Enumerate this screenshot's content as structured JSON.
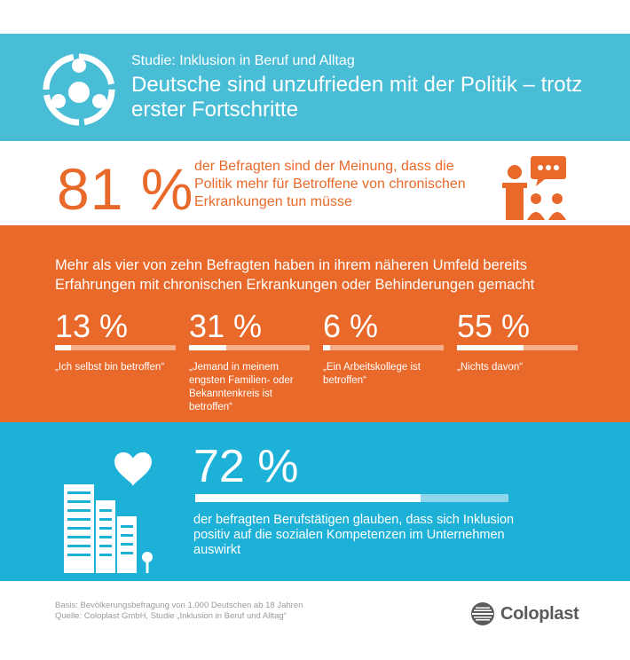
{
  "header": {
    "subtitle": "Studie: Inklusion in Beruf und Alltag",
    "title": "Deutsche sind unzufrieden mit der Politik – trotz erster Fortschritte",
    "icon": "people-circle-icon"
  },
  "stat81": {
    "value": "81 %",
    "text": "der Befragten sind der Meinung, dass die Politik mehr für Betroffene von chronischen Erkrankungen tun müsse",
    "icon": "speaker-audience-icon"
  },
  "orange": {
    "headline": "Mehr als vier von zehn Befragten haben in ihrem näheren Umfeld bereits Erfahrungen mit chronischen Erkrankungen oder Behinderungen gemacht",
    "stats": [
      {
        "value": "13 %",
        "percent": 13,
        "label": "„Ich selbst bin betroffen“"
      },
      {
        "value": "31 %",
        "percent": 31,
        "label": "„Jemand in meinem engsten Familien- oder Bekanntenkreis ist betroffen“"
      },
      {
        "value": "6 %",
        "percent": 6,
        "label": "„Ein Arbeitskollege ist betroffen“"
      },
      {
        "value": "55 %",
        "percent": 55,
        "label": "„Nichts davon“"
      }
    ]
  },
  "teal": {
    "value": "72 %",
    "percent": 72,
    "text": "der befragten Berufstätigen glauben, dass sich Inklusion positiv auf die sozialen Kompetenzen im Unternehmen auswirkt",
    "icon": "city-heart-icon"
  },
  "footer": {
    "basis": "Basis: Bevölkerungsbefragung von 1.000 Deutschen ab 18 Jahren",
    "source": "Quelle: Coloplast GmbH, Studie „Inklusion in Beruf und Alltag“",
    "logo_text": "Coloplast"
  },
  "colors": {
    "teal_header": "#49bdd6",
    "orange": "#e8692a",
    "teal": "#1db1d8",
    "gray_text": "#9a9a9a"
  }
}
